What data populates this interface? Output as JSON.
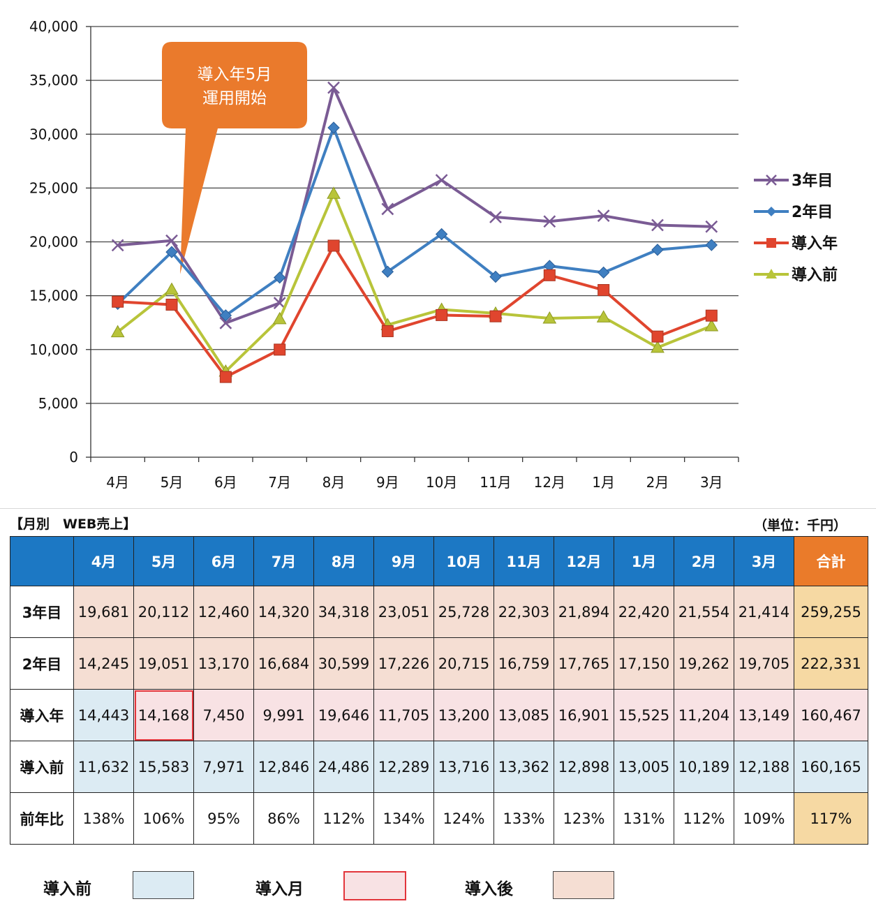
{
  "chart_data": {
    "type": "line",
    "categories": [
      "4月",
      "5月",
      "6月",
      "7月",
      "8月",
      "9月",
      "10月",
      "11月",
      "12月",
      "1月",
      "2月",
      "3月"
    ],
    "ylim": [
      0,
      40000
    ],
    "yticks": [
      "40,000",
      "35,000",
      "30,000",
      "25,000",
      "20,000",
      "15,000",
      "10,000",
      "5,000",
      "0"
    ],
    "ytick_values": [
      40000,
      35000,
      30000,
      25000,
      20000,
      15000,
      10000,
      5000,
      0
    ],
    "grid": true,
    "legend_position": "right",
    "series": [
      {
        "name": "3年目",
        "color": "#7a5b94",
        "marker": "x",
        "values": [
          19681,
          20112,
          12460,
          14320,
          34318,
          23051,
          25728,
          22303,
          21894,
          22420,
          21554,
          21414
        ]
      },
      {
        "name": "2年目",
        "color": "#3f7fc1",
        "marker": "diamond",
        "values": [
          14245,
          19051,
          13170,
          16684,
          30599,
          17226,
          20715,
          16759,
          17765,
          17150,
          19262,
          19705
        ]
      },
      {
        "name": "導入年",
        "color": "#e0452e",
        "marker": "square",
        "values": [
          14443,
          14168,
          7450,
          9991,
          19646,
          11705,
          13200,
          13085,
          16901,
          15525,
          11204,
          13149
        ]
      },
      {
        "name": "導入前",
        "color": "#b8c43a",
        "marker": "triangle",
        "values": [
          11632,
          15583,
          7971,
          12846,
          24486,
          12289,
          13716,
          13362,
          12898,
          13005,
          10189,
          12188
        ]
      }
    ],
    "annotation": {
      "lines": [
        "導入年5月",
        "運用開始"
      ],
      "color": "#ea7a2c",
      "points_to": "5月"
    }
  },
  "table": {
    "title": "【月別　WEB売上】",
    "unit": "（単位：千円）",
    "headers": [
      "4月",
      "5月",
      "6月",
      "7月",
      "8月",
      "9月",
      "10月",
      "11月",
      "12月",
      "1月",
      "2月",
      "3月",
      "合計"
    ],
    "rows": [
      {
        "label": "3年目",
        "cells": [
          "19,681",
          "20,112",
          "12,460",
          "14,320",
          "34,318",
          "23,051",
          "25,728",
          "22,303",
          "21,894",
          "22,420",
          "21,554",
          "21,414",
          "259,255"
        ]
      },
      {
        "label": "2年目",
        "cells": [
          "14,245",
          "19,051",
          "13,170",
          "16,684",
          "30,599",
          "17,226",
          "20,715",
          "16,759",
          "17,765",
          "17,150",
          "19,262",
          "19,705",
          "222,331"
        ]
      },
      {
        "label": "導入年",
        "cells": [
          "14,443",
          "14,168",
          "7,450",
          "9,991",
          "19,646",
          "11,705",
          "13,200",
          "13,085",
          "16,901",
          "15,525",
          "11,204",
          "13,149",
          "160,467"
        ]
      },
      {
        "label": "導入前",
        "cells": [
          "11,632",
          "15,583",
          "7,971",
          "12,846",
          "24,486",
          "12,289",
          "13,716",
          "13,362",
          "12,898",
          "13,005",
          "10,189",
          "12,188",
          "160,165"
        ]
      },
      {
        "label": "前年比",
        "cells": [
          "138%",
          "106%",
          "95%",
          "86%",
          "112%",
          "134%",
          "124%",
          "133%",
          "123%",
          "131%",
          "112%",
          "109%",
          "117%"
        ]
      }
    ]
  },
  "key": {
    "items": [
      {
        "label": "導入前",
        "fill": "#dcebf3",
        "border": "#444444"
      },
      {
        "label": "導入月",
        "fill": "#f8e2e4",
        "border": "#e2353b"
      },
      {
        "label": "導入後",
        "fill": "#f5ded3",
        "border": "#444444"
      }
    ]
  }
}
